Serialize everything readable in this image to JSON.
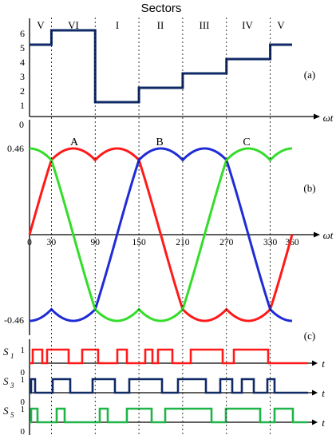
{
  "header": {
    "title": "Sectors"
  },
  "colors": {
    "red": "#ff1a1a",
    "blue": "#1f2bd6",
    "green": "#33dd2a",
    "navy": "#0f2a66",
    "signal_green": "#1fb548",
    "axis": "#000000",
    "grid": "#000000"
  },
  "panel_labels": {
    "a": "(a)",
    "b": "(b)",
    "c": "(c)"
  },
  "chart_data": [
    {
      "type": "line",
      "panel": "(a)",
      "title": "Sectors",
      "xlabel": "ωt",
      "sectors": [
        "V",
        "VI",
        "I",
        "II",
        "III",
        "IV",
        "V"
      ],
      "y_ticks": [
        "1",
        "2",
        "3",
        "4",
        "5",
        "6"
      ],
      "ylim": [
        0,
        6.5
      ],
      "xlim": [
        0,
        360
      ],
      "steps": [
        {
          "from": 0,
          "to": 30,
          "value": 5
        },
        {
          "from": 30,
          "to": 90,
          "value": 6
        },
        {
          "from": 90,
          "to": 150,
          "value": 1
        },
        {
          "from": 150,
          "to": 210,
          "value": 2
        },
        {
          "from": 210,
          "to": 270,
          "value": 3
        },
        {
          "from": 270,
          "to": 330,
          "value": 4
        },
        {
          "from": 330,
          "to": 360,
          "value": 5
        }
      ]
    },
    {
      "type": "line",
      "panel": "(b)",
      "xlabel": "ωt",
      "x_ticks": [
        "0",
        "30",
        "90",
        "150",
        "210",
        "270",
        "330",
        "360"
      ],
      "x_tick_values": [
        0,
        30,
        90,
        150,
        210,
        270,
        330,
        360
      ],
      "y_tick_labels": {
        "top": "0",
        "max": "0.46",
        "min": "-0.46"
      },
      "y_extent": 0.46,
      "ylim": [
        -0.46,
        0.46
      ],
      "xlim": [
        0,
        360
      ],
      "series": [
        {
          "name": "A",
          "color": "#ff1a1a",
          "phase_deg": 0
        },
        {
          "name": "B",
          "color": "#1f2bd6",
          "phase_deg": 120
        },
        {
          "name": "C",
          "color": "#33dd2a",
          "phase_deg": 240
        }
      ]
    },
    {
      "type": "line",
      "panel": "(c)",
      "xlabel": "t",
      "signals": [
        {
          "name": "S",
          "sub": "1",
          "color": "#ff1a1a",
          "high_label": "1",
          "low_label": "0",
          "high_intervals": [
            [
              0,
              12
            ],
            [
              18,
              45
            ],
            [
              62,
              82
            ],
            [
              106,
              118
            ],
            [
              141,
              150
            ],
            [
              157,
              175
            ],
            [
              198,
              238
            ],
            [
              252,
              295
            ]
          ]
        },
        {
          "name": "S",
          "sub": "3",
          "color": "#0f2a66",
          "high_label": "1",
          "low_label": "0",
          "high_intervals": [
            [
              -2,
              3
            ],
            [
              25,
              47
            ],
            [
              75,
              103
            ],
            [
              121,
              162
            ],
            [
              182,
              217
            ],
            [
              235,
              250
            ],
            [
              262,
              277
            ],
            [
              294,
              303
            ]
          ]
        },
        {
          "name": "S",
          "sub": "5",
          "color": "#1fb548",
          "high_label": "1",
          "low_label": "0",
          "high_intervals": [
            [
              -2,
              6
            ],
            [
              30,
              40
            ],
            [
              84,
              94
            ],
            [
              118,
              149
            ],
            [
              166,
              224
            ],
            [
              242,
              285
            ],
            [
              303,
              326
            ]
          ]
        }
      ]
    }
  ]
}
